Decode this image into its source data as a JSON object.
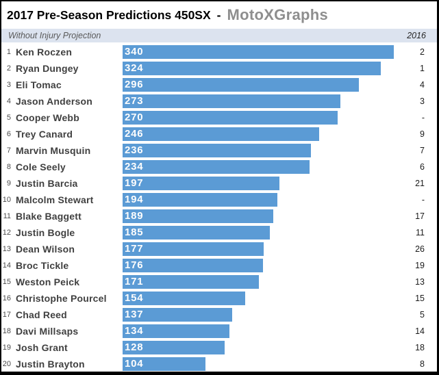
{
  "header": {
    "title": "2017 Pre-Season Predictions 450SX",
    "separator": "-",
    "brand": "MotoXGraphs",
    "subtitle": "Without Injury Projection",
    "prev_year_label": "2016"
  },
  "colors": {
    "bar": "#5B9BD5",
    "subtitle_bg": "#DCE3EF",
    "brand_text": "#8E8E8E",
    "name_text": "#404040",
    "bar_label_text": "#FDFDFD"
  },
  "chart_data": {
    "type": "bar",
    "orientation": "horizontal",
    "title": "2017 Pre-Season Predictions 450SX - MotoXGraphs",
    "subtitle": "Without Injury Projection",
    "categories": [
      "Ken Roczen",
      "Ryan Dungey",
      "Eli Tomac",
      "Jason Anderson",
      "Cooper Webb",
      "Trey Canard",
      "Marvin Musquin",
      "Cole Seely",
      "Justin Barcia",
      "Malcolm Stewart",
      "Blake Baggett",
      "Justin Bogle",
      "Dean Wilson",
      "Broc Tickle",
      "Weston Peick",
      "Christophe Pourcel",
      "Chad Reed",
      "Davi Millsaps",
      "Josh Grant",
      "Justin Brayton"
    ],
    "ranks": [
      1,
      2,
      3,
      4,
      5,
      6,
      7,
      8,
      9,
      10,
      11,
      12,
      13,
      14,
      15,
      16,
      17,
      18,
      19,
      20
    ],
    "values": [
      340,
      324,
      296,
      273,
      270,
      246,
      236,
      234,
      197,
      194,
      189,
      185,
      177,
      176,
      171,
      154,
      137,
      134,
      128,
      104
    ],
    "secondary_column": {
      "label": "2016",
      "values": [
        "2",
        "1",
        "4",
        "3",
        "-",
        "9",
        "7",
        "6",
        "21",
        "-",
        "17",
        "11",
        "26",
        "19",
        "13",
        "15",
        "5",
        "14",
        "18",
        "8"
      ]
    },
    "bar_color": "#5B9BD5",
    "value_labels": "inside-start",
    "xlim": [
      0,
      340
    ],
    "legend": "none",
    "grid": false
  }
}
